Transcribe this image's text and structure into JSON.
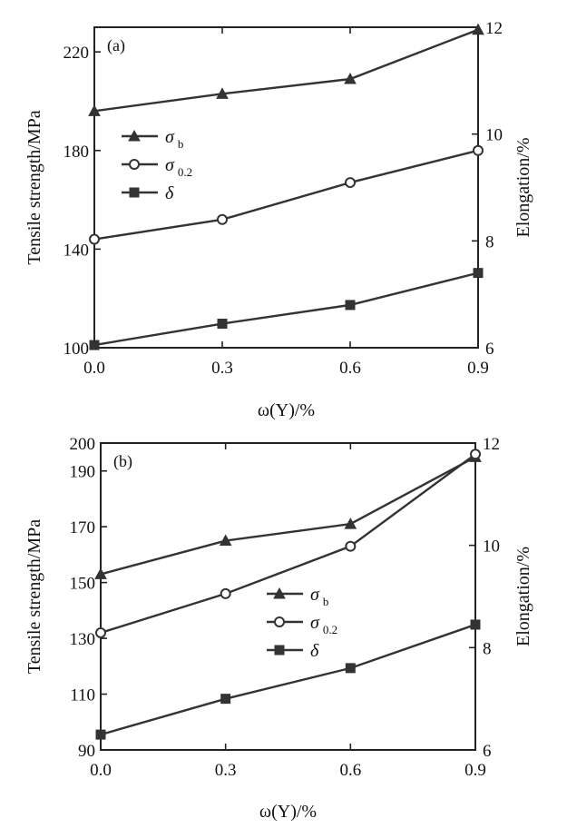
{
  "chart_data": [
    {
      "type": "line",
      "panel_label": "(a)",
      "xlabel": "ω(Y)/%",
      "ylabel": "Tensile strength/MPa",
      "y2label": "Elongation/%",
      "x": [
        0.0,
        0.3,
        0.6,
        0.9
      ],
      "xticks": [
        "0.0",
        "0.3",
        "0.6",
        "0.9"
      ],
      "xlim": [
        0.0,
        0.9
      ],
      "ylim": [
        100,
        230
      ],
      "yticks": [
        "100",
        "140",
        "180",
        "220"
      ],
      "y2lim": [
        6,
        12
      ],
      "y2ticks": [
        "6",
        "8",
        "10",
        "12"
      ],
      "legend_position": "left-middle",
      "series": [
        {
          "name": "σ",
          "name_sub": "b",
          "axis": "left",
          "marker": "triangle",
          "values": [
            196,
            203,
            209,
            229
          ]
        },
        {
          "name": "σ",
          "name_sub": "0.2",
          "axis": "left",
          "marker": "circle",
          "values": [
            144,
            152,
            167,
            180
          ]
        },
        {
          "name": "δ",
          "name_sub": "",
          "axis": "right",
          "marker": "square",
          "values": [
            6.05,
            6.45,
            6.8,
            7.4
          ]
        }
      ]
    },
    {
      "type": "line",
      "panel_label": "(b)",
      "xlabel": "ω(Y)/%",
      "ylabel": "Tensile strength/MPa",
      "y2label": "Elongation/%",
      "x": [
        0.0,
        0.3,
        0.6,
        0.9
      ],
      "xticks": [
        "0.0",
        "0.3",
        "0.6",
        "0.9"
      ],
      "xlim": [
        0.0,
        0.9
      ],
      "ylim": [
        90,
        200
      ],
      "yticks": [
        "90",
        "110",
        "130",
        "150",
        "170",
        "190",
        "200"
      ],
      "y2lim": [
        6,
        12
      ],
      "y2ticks": [
        "6",
        "8",
        "10",
        "12"
      ],
      "legend_position": "right-middle",
      "series": [
        {
          "name": "σ",
          "name_sub": "b",
          "axis": "left",
          "marker": "triangle",
          "values": [
            153,
            165,
            171,
            195
          ]
        },
        {
          "name": "σ",
          "name_sub": "0.2",
          "axis": "left",
          "marker": "circle",
          "values": [
            132,
            146,
            163,
            196
          ]
        },
        {
          "name": "δ",
          "name_sub": "",
          "axis": "right",
          "marker": "square",
          "values": [
            6.3,
            7.0,
            7.6,
            8.45
          ]
        }
      ]
    }
  ]
}
